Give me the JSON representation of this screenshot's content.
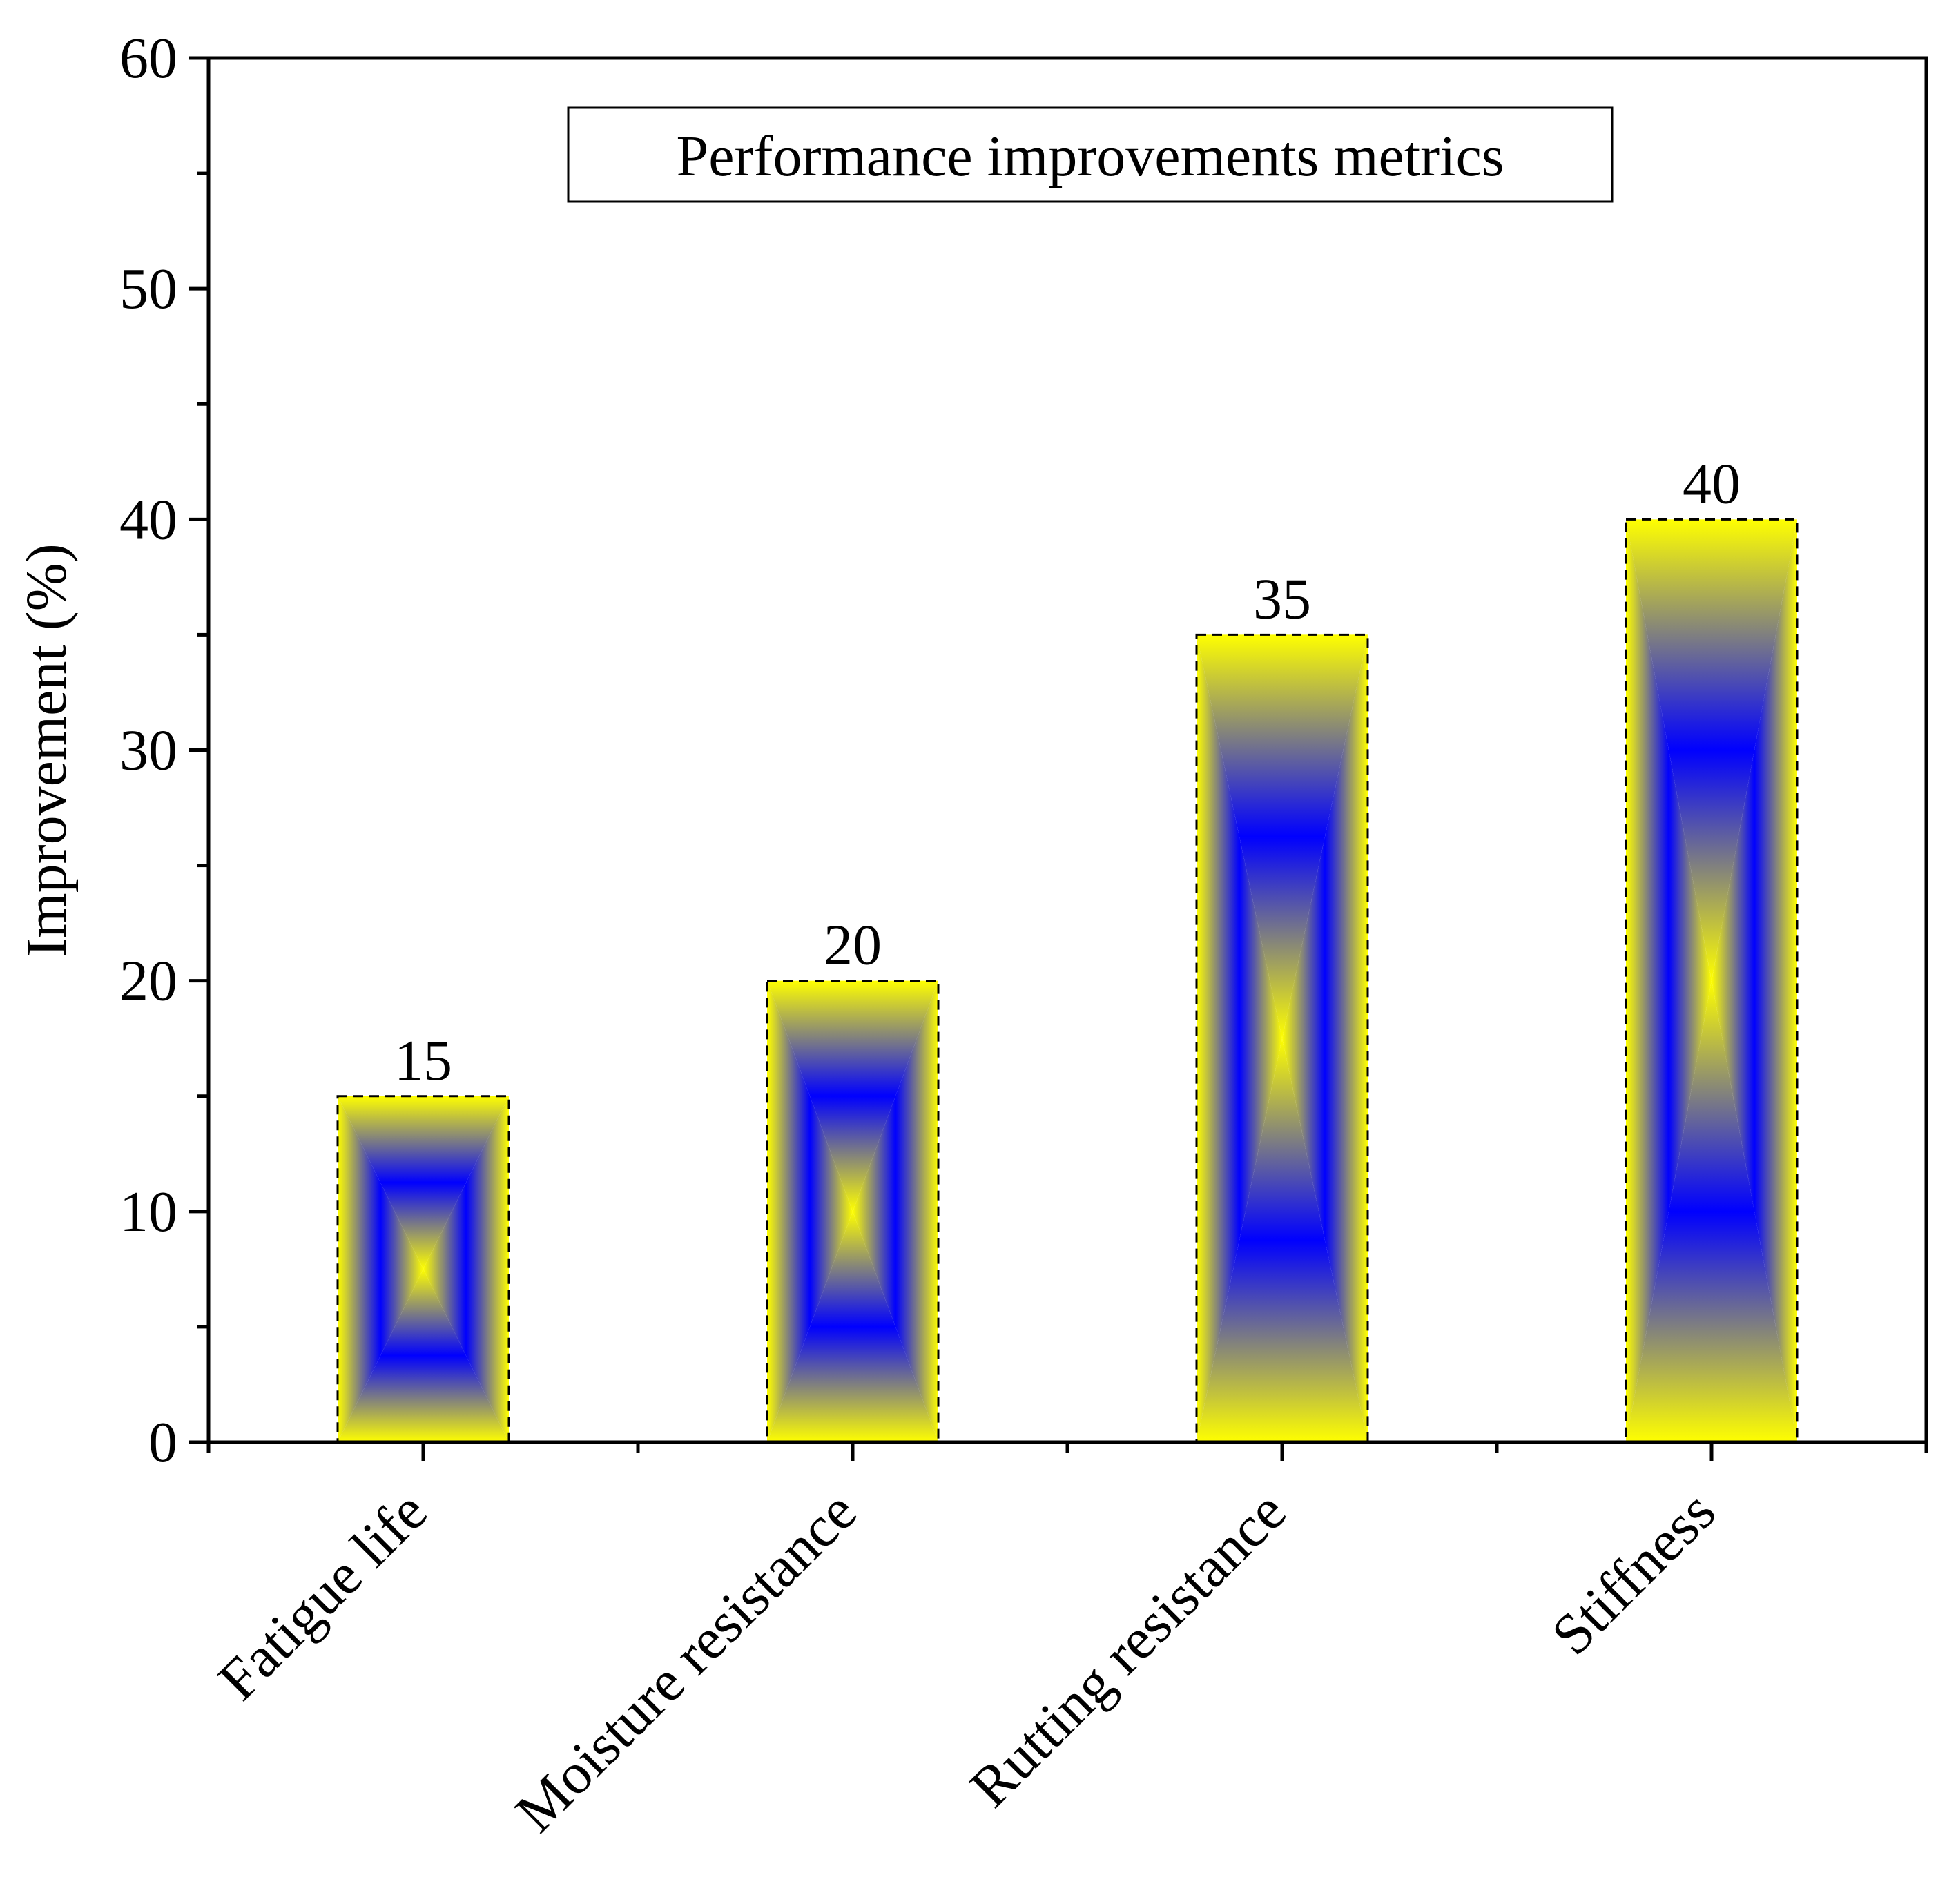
{
  "chart_data": {
    "type": "bar",
    "title": "Performance improvements metrics",
    "xlabel": "",
    "ylabel": "Improvement (%)",
    "categories": [
      "Fatigue life",
      "Moisture resistance",
      "Rutting resistance",
      "Stiffness"
    ],
    "values": [
      15,
      20,
      35,
      40
    ],
    "data_labels": [
      "15",
      "20",
      "35",
      "40"
    ],
    "ylim": [
      0,
      60
    ],
    "yticks": [
      0,
      10,
      20,
      30,
      40,
      50,
      60
    ],
    "ytick_labels": [
      "0",
      "10",
      "20",
      "30",
      "40",
      "50",
      "60"
    ],
    "minor_ytick_step": 5,
    "grid": false,
    "legend": "none",
    "bar_fill": {
      "edge_color": "#ffff00",
      "center_color": "#0000ff",
      "outline_color": "#000000",
      "outline_style": "dashed"
    }
  }
}
